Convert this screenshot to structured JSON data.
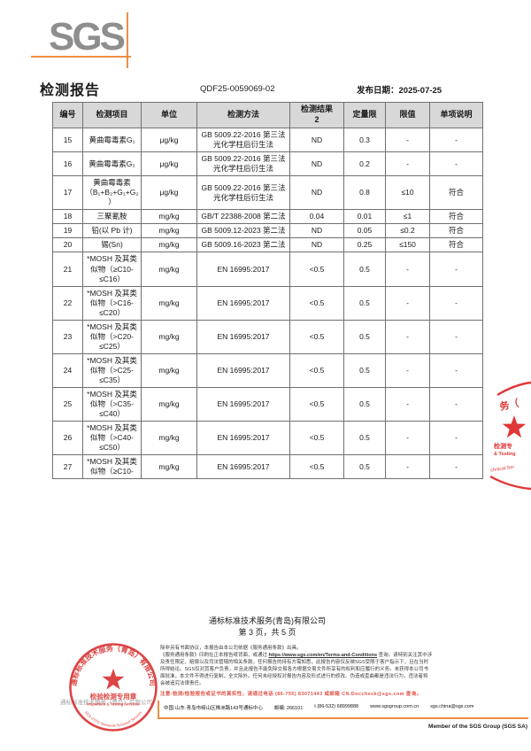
{
  "colors": {
    "accent_orange": "#ef8e44",
    "stamp_red": "#d92b2b",
    "notice_red": "#e0554a",
    "logo_gray": "#8e8e8e",
    "table_header_bg": "#d8d8d8",
    "table_border": "#707070"
  },
  "logo": {
    "text": "SGS"
  },
  "report_header": {
    "title": "检测报告",
    "report_no": "QDF25-0059069-02",
    "issue_date": "发布日期：2025-07-25"
  },
  "table": {
    "columns": [
      "编号",
      "检测项目",
      "单位",
      "检测方法",
      "检测结果",
      "定量限",
      "限值",
      "单项说明"
    ],
    "result_col_note": "2",
    "rows": [
      {
        "no": "15",
        "item": "黄曲霉毒素G₁",
        "unit": "μg/kg",
        "method": "GB 5009.22-2016 第三法光化学柱后衍生法",
        "result": "ND",
        "loq": "0.3",
        "limit": "-",
        "conclusion": "-"
      },
      {
        "no": "16",
        "item": "黄曲霉毒素G₂",
        "unit": "μg/kg",
        "method": "GB 5009.22-2016 第三法光化学柱后衍生法",
        "result": "ND",
        "loq": "0.2",
        "limit": "-",
        "conclusion": "-"
      },
      {
        "no": "17",
        "item": "黄曲霉毒素（B₁+B₂+G₁+G₂）",
        "unit": "μg/kg",
        "method": "GB 5009.22-2016 第三法光化学柱后衍生法",
        "result": "ND",
        "loq": "0.8",
        "limit": "≤10",
        "conclusion": "符合"
      },
      {
        "no": "18",
        "item": "三聚氰胺",
        "unit": "mg/kg",
        "method": "GB/T 22388-2008 第二法",
        "result": "0.04",
        "loq": "0.01",
        "limit": "≤1",
        "conclusion": "符合"
      },
      {
        "no": "19",
        "item": "铅(以 Pb 计)",
        "unit": "mg/kg",
        "method": "GB 5009.12-2023 第二法",
        "result": "ND",
        "loq": "0.05",
        "limit": "≤0.2",
        "conclusion": "符合"
      },
      {
        "no": "20",
        "item": "锡(Sn)",
        "unit": "mg/kg",
        "method": "GB 5009.16-2023 第二法",
        "result": "ND",
        "loq": "0.25",
        "limit": "≤150",
        "conclusion": "符合"
      },
      {
        "no": "21",
        "item": "*MOSH 及其类似物（≥C10-≤C16）",
        "unit": "mg/kg",
        "method": "EN 16995:2017",
        "result": "<0.5",
        "loq": "0.5",
        "limit": "-",
        "conclusion": "-"
      },
      {
        "no": "22",
        "item": "*MOSH 及其类似物（>C16-≤C20）",
        "unit": "mg/kg",
        "method": "EN 16995:2017",
        "result": "<0.5",
        "loq": "0.5",
        "limit": "-",
        "conclusion": "-"
      },
      {
        "no": "23",
        "item": "*MOSH 及其类似物（>C20-≤C25）",
        "unit": "mg/kg",
        "method": "EN 16995:2017",
        "result": "<0.5",
        "loq": "0.5",
        "limit": "-",
        "conclusion": "-"
      },
      {
        "no": "24",
        "item": "*MOSH 及其类似物（>C25-≤C35）",
        "unit": "mg/kg",
        "method": "EN 16995:2017",
        "result": "<0.5",
        "loq": "0.5",
        "limit": "-",
        "conclusion": "-"
      },
      {
        "no": "25",
        "item": "*MOSH 及其类似物（>C35-≤C40）",
        "unit": "mg/kg",
        "method": "EN 16995:2017",
        "result": "<0.5",
        "loq": "0.5",
        "limit": "-",
        "conclusion": "-"
      },
      {
        "no": "26",
        "item": "*MOSH 及其类似物（>C40-≤C50）",
        "unit": "mg/kg",
        "method": "EN 16995:2017",
        "result": "<0.5",
        "loq": "0.5",
        "limit": "-",
        "conclusion": "-"
      },
      {
        "no": "27",
        "item": "*MOSH 及其类似物（≥C10-",
        "unit": "mg/kg",
        "method": "EN 16995:2017",
        "result": "<0.5",
        "loq": "0.5",
        "limit": "-",
        "conclusion": "-"
      }
    ]
  },
  "page_footer": {
    "company": "通标标准技术服务(青岛)有限公司",
    "page_info": "第 3 页，共 5 页"
  },
  "seal": {
    "ring_top": "通标标准技术服务（青岛）有限公司",
    "title": "检验检测专用章",
    "subtitle": "Inspection & Testing Services",
    "ring_bottom": "SGS-CSTC Standards Technical Services"
  },
  "seal_bg_text": "通标标准技术服务（青岛）有限公司",
  "right_seal": {
    "fragment_top": "务（",
    "fragment_line1": "检测专",
    "fragment_line2": "& Testing",
    "fragment_line3": "chnical Ser"
  },
  "fine_print": {
    "line1": "除非另有书面协议，本报告由本公司依据《服务通用条款》出具。",
    "line2_pre": "《服务通用条款》印刷在正本报告纸背面，或通过 ",
    "line2_url": "https://www.sgs.com/en/Terms-and-Conditions",
    "line2_post": " 查询。请特别关注其中涉",
    "line3": "及责任限定、赔偿以及司法管辖的相关条款。任何报告的持有方需知悉，此报告内容仅反映SGS受限于客户指示下，且在当时",
    "line4": "所得结论。SGS仅对其客户负责，并且此报告不能免除交易各方根据交易文件所享有的权利和应履行的义务。未获得本公司书",
    "line5": "面批准，本文件不得进行复制，全文除外。任何未经授权对报告内容及形式进行的修改、伪造或歪曲都是违法行为，违法者将",
    "line6": "会被追究法律责任。"
  },
  "notice": "注意:检测/检验报告或证书的真实性，请通过电话 (86-755) 83071443 或邮箱 CN.Doccheck@sgs.com 查询。",
  "address_bar": {
    "address": "中国·山东·青岛市崂山区株洲路143号通标中心",
    "postal": "邮编: 266101",
    "tel": "t (86-532) 68999888",
    "web": "www.sgsgroup.com.cn",
    "email": "sgs.china@sgs.com"
  },
  "member_line": "Member of the SGS Group (SGS SA)"
}
